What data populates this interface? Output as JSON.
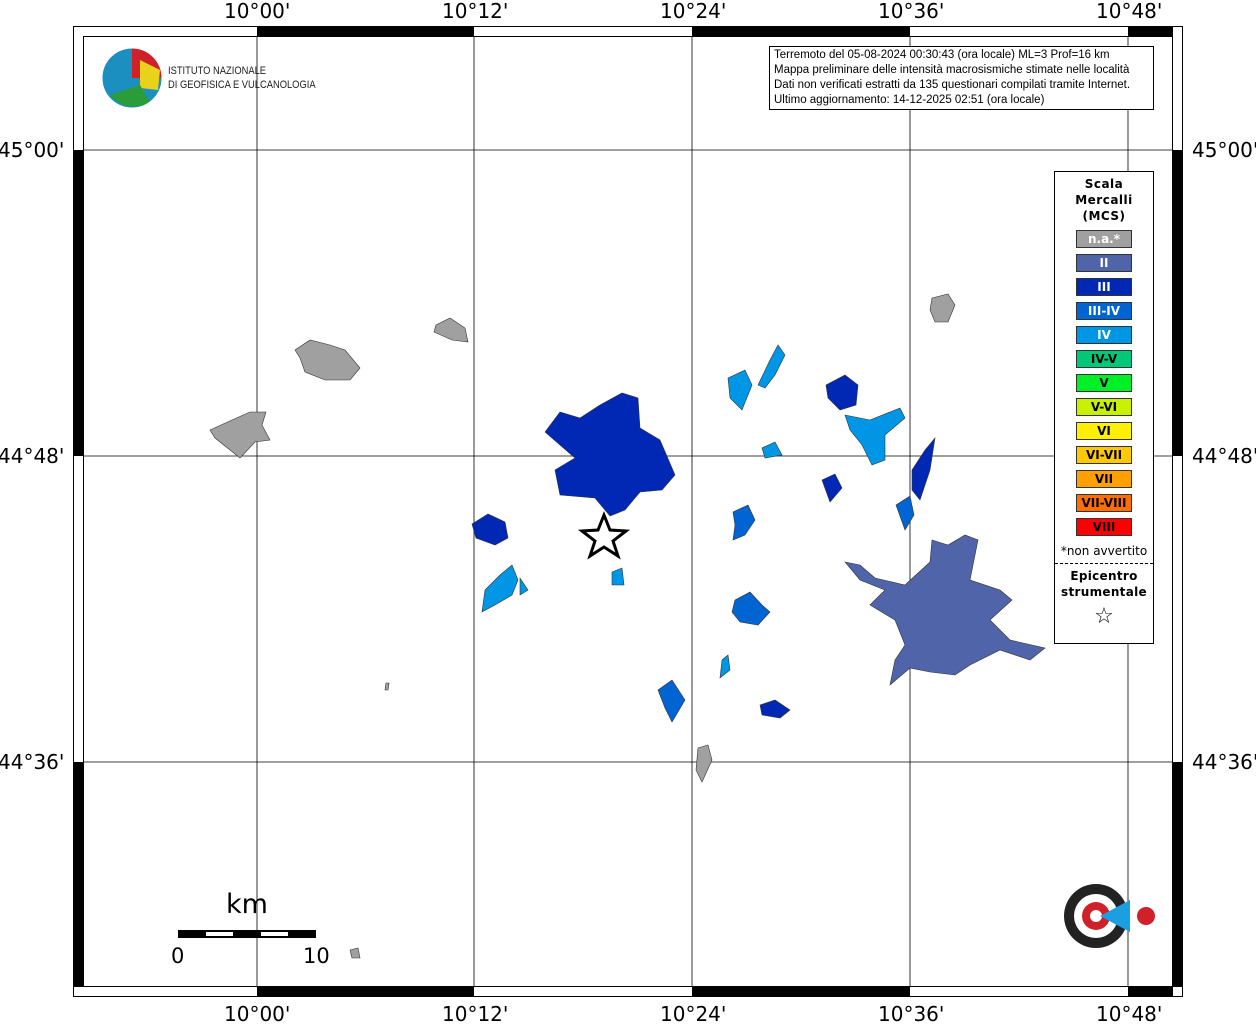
{
  "map": {
    "lon_ticks_top": [
      "10°00'",
      "10°12'",
      "10°24'",
      "10°36'",
      "10°48'"
    ],
    "lon_ticks_bottom": [
      "10°00'",
      "10°12'",
      "10°24'",
      "10°36'",
      "10°48'"
    ],
    "lat_ticks_left": [
      "45°00'",
      "44°48'",
      "44°36'"
    ],
    "lat_ticks_right": [
      "45°00'",
      "44°48'",
      "44°36'"
    ]
  },
  "logo": {
    "line1": "ISTITUTO NAZIONALE",
    "line2": "DI GEOFISICA E VULCANOLOGIA"
  },
  "info": {
    "line1": "Terremoto del 05-08-2024 00:30:43 (ora locale) ML=3 Prof=16 km",
    "line2": "Mappa preliminare delle intensità macrosismiche stimate nelle località",
    "line3": "Dati non verificati estratti da 135 questionari compilati tramite Internet.",
    "line4": "Ultimo aggiornamento: 14-12-2025 02:51 (ora locale)"
  },
  "legend": {
    "title1": "Scala",
    "title2": "Mercalli",
    "title3": "(MCS)",
    "items": [
      {
        "label": "n.a.*",
        "color": "#a0a0a0",
        "text": "#ffffff"
      },
      {
        "label": "II",
        "color": "#5064aa",
        "text": "#ffffff"
      },
      {
        "label": "III",
        "color": "#0028b4",
        "text": "#ffffff"
      },
      {
        "label": "III-IV",
        "color": "#0064d2",
        "text": "#ffffff"
      },
      {
        "label": "IV",
        "color": "#0096e6",
        "text": "#ffffff"
      },
      {
        "label": "IV-V",
        "color": "#00c878",
        "text": "#000000"
      },
      {
        "label": "V",
        "color": "#00f028",
        "text": "#000000"
      },
      {
        "label": "V-VI",
        "color": "#c8f000",
        "text": "#000000"
      },
      {
        "label": "VI",
        "color": "#fff000",
        "text": "#000000"
      },
      {
        "label": "VI-VII",
        "color": "#ffc800",
        "text": "#000000"
      },
      {
        "label": "VII",
        "color": "#ffa000",
        "text": "#000000"
      },
      {
        "label": "VII-VIII",
        "color": "#ff6e00",
        "text": "#000000"
      },
      {
        "label": "VIII",
        "color": "#ff0000",
        "text": "#000000"
      }
    ],
    "note": "*non avvertito",
    "epicentre1": "Epicentro",
    "epicentre2": "strumentale",
    "star": "☆"
  },
  "scalebar": {
    "unit": "km",
    "start": "0",
    "end": "10"
  },
  "haisentito_logo": "www.haisentitoilterremoto.it"
}
